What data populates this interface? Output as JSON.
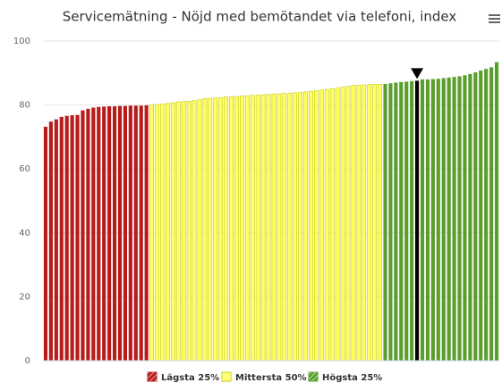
{
  "chart_data": {
    "type": "bar",
    "title": "Servicemätning - Nöjd med bemötandet via telefoni, index",
    "series": [
      {
        "name": "Lägsta 25%",
        "color": "#b71c1c",
        "values": [
          73.2,
          74.8,
          75.5,
          76.3,
          76.6,
          76.8,
          76.9,
          78.3,
          78.8,
          79.2,
          79.4,
          79.5,
          79.6,
          79.6,
          79.7,
          79.7,
          79.8,
          79.8,
          79.8,
          79.9
        ]
      },
      {
        "name": "Mittersta 50%",
        "color": "#ffff66",
        "values": [
          80.0,
          80.2,
          80.3,
          80.5,
          80.7,
          81.0,
          81.1,
          81.2,
          81.4,
          81.6,
          82.0,
          82.1,
          82.2,
          82.3,
          82.5,
          82.6,
          82.7,
          82.8,
          82.9,
          83.0,
          83.1,
          83.2,
          83.3,
          83.4,
          83.5,
          83.6,
          83.7,
          83.8,
          84.0,
          84.1,
          84.3,
          84.5,
          84.7,
          84.9,
          85.1,
          85.3,
          85.6,
          85.9,
          86.1,
          86.2,
          86.3,
          86.4,
          86.5,
          86.5
        ]
      },
      {
        "name": "Högsta 25%",
        "color": "#5a9e2f",
        "values": [
          86.6,
          86.8,
          87.0,
          87.2,
          87.3,
          87.5,
          87.6,
          88.0,
          88.0,
          88.1,
          88.2,
          88.4,
          88.6,
          88.8,
          89.0,
          89.3,
          89.7,
          90.2,
          90.8,
          91.3,
          91.8,
          93.4
        ],
        "highlight": {
          "index": 6,
          "color": "#000000"
        }
      }
    ],
    "ylim": [
      0,
      100
    ],
    "yticks": [
      0,
      20,
      40,
      60,
      80,
      100
    ],
    "grid": true
  }
}
